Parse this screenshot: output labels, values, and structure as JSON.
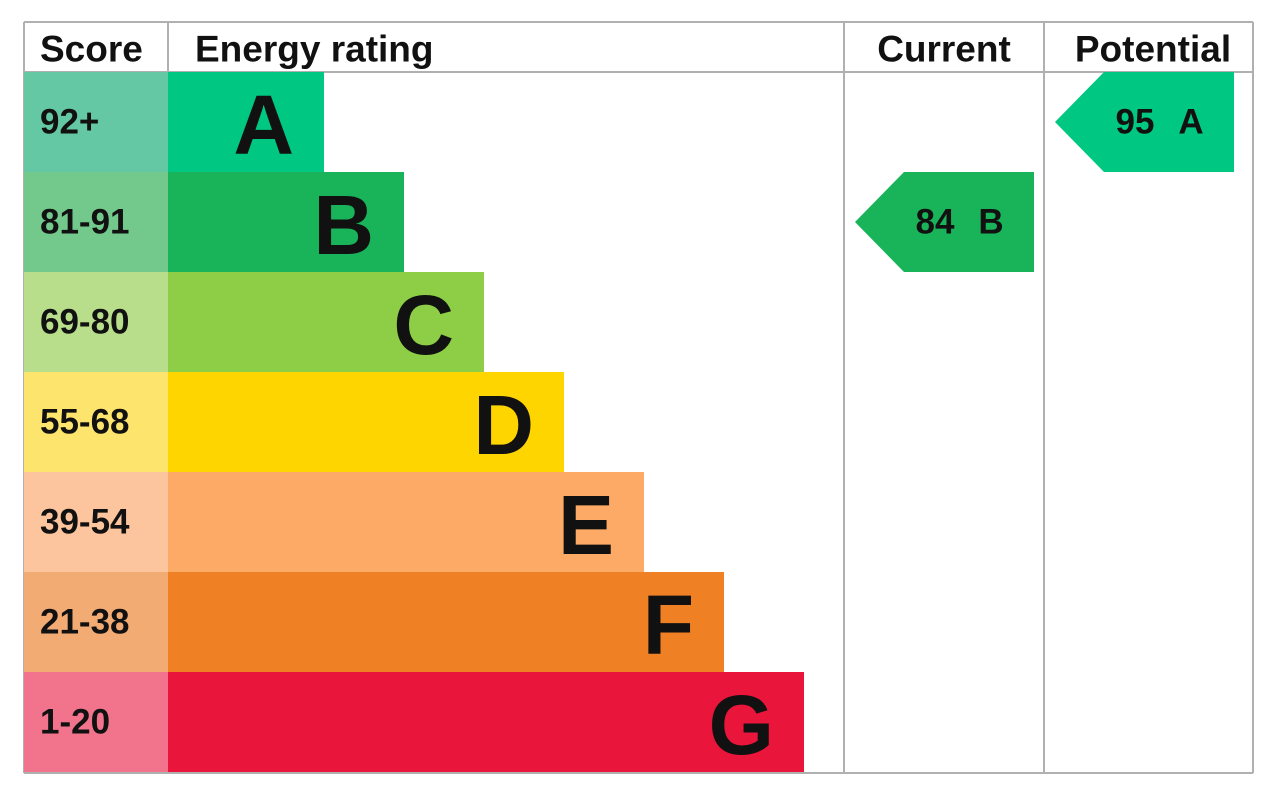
{
  "header": {
    "score": "Score",
    "energy_rating": "Energy rating",
    "current": "Current",
    "potential": "Potential"
  },
  "rows": [
    {
      "score": "92+",
      "band": "A",
      "score_color": "#64c8a4",
      "color": "#00c781"
    },
    {
      "score": "81-91",
      "band": "B",
      "score_color": "#72c98b",
      "color": "#19b459"
    },
    {
      "score": "69-80",
      "band": "C",
      "score_color": "#b8de8b",
      "color": "#8dce46"
    },
    {
      "score": "55-68",
      "band": "D",
      "score_color": "#fde46c",
      "color": "#ffd500"
    },
    {
      "score": "39-54",
      "band": "E",
      "score_color": "#fdc59d",
      "color": "#fcaa65"
    },
    {
      "score": "21-38",
      "band": "F",
      "score_color": "#f3ab74",
      "color": "#ef8023"
    },
    {
      "score": "1-20",
      "band": "G",
      "score_color": "#f2738c",
      "color": "#e9153b"
    }
  ],
  "current": {
    "value": 84,
    "band": "B"
  },
  "potential": {
    "value": 95,
    "band": "A"
  }
}
